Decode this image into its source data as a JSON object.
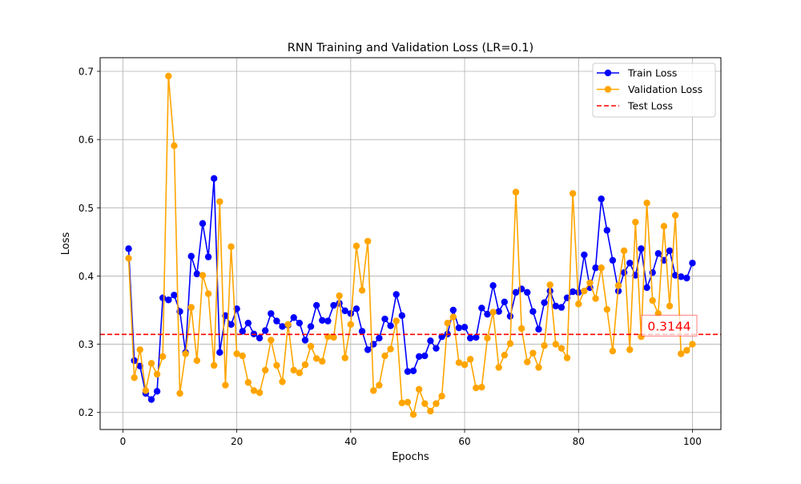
{
  "chart_data": {
    "type": "line",
    "title": "RNN Training and Validation Loss (LR=0.1)",
    "xlabel": "Epochs",
    "ylabel": "Loss",
    "xlim": [
      -4,
      105
    ],
    "ylim": [
      0.175,
      0.72
    ],
    "xticks": [
      0,
      20,
      40,
      60,
      80,
      100
    ],
    "yticks": [
      0.2,
      0.3,
      0.4,
      0.5,
      0.6,
      0.7
    ],
    "grid": true,
    "legend_position": "top-right",
    "x": [
      1,
      2,
      3,
      4,
      5,
      6,
      7,
      8,
      9,
      10,
      11,
      12,
      13,
      14,
      15,
      16,
      17,
      18,
      19,
      20,
      21,
      22,
      23,
      24,
      25,
      26,
      27,
      28,
      29,
      30,
      31,
      32,
      33,
      34,
      35,
      36,
      37,
      38,
      39,
      40,
      41,
      42,
      43,
      44,
      45,
      46,
      47,
      48,
      49,
      50,
      51,
      52,
      53,
      54,
      55,
      56,
      57,
      58,
      59,
      60,
      61,
      62,
      63,
      64,
      65,
      66,
      67,
      68,
      69,
      70,
      71,
      72,
      73,
      74,
      75,
      76,
      77,
      78,
      79,
      80,
      81,
      82,
      83,
      84,
      85,
      86,
      87,
      88,
      89,
      90,
      91,
      92,
      93,
      94,
      95,
      96,
      97,
      98,
      99,
      100
    ],
    "series": [
      {
        "name": "Train Loss",
        "color": "#0000ff",
        "values": [
          0.44,
          0.276,
          0.268,
          0.228,
          0.219,
          0.231,
          0.368,
          0.365,
          0.372,
          0.348,
          0.288,
          0.429,
          0.403,
          0.477,
          0.428,
          0.543,
          0.288,
          0.342,
          0.329,
          0.352,
          0.319,
          0.331,
          0.315,
          0.309,
          0.32,
          0.345,
          0.334,
          0.326,
          0.328,
          0.339,
          0.331,
          0.306,
          0.326,
          0.357,
          0.335,
          0.334,
          0.357,
          0.36,
          0.349,
          0.345,
          0.352,
          0.319,
          0.292,
          0.3,
          0.309,
          0.337,
          0.327,
          0.373,
          0.342,
          0.26,
          0.261,
          0.282,
          0.283,
          0.305,
          0.294,
          0.311,
          0.315,
          0.35,
          0.324,
          0.325,
          0.309,
          0.31,
          0.353,
          0.344,
          0.386,
          0.348,
          0.362,
          0.341,
          0.376,
          0.381,
          0.376,
          0.348,
          0.322,
          0.361,
          0.378,
          0.356,
          0.354,
          0.368,
          0.377,
          0.376,
          0.431,
          0.383,
          0.412,
          0.513,
          0.467,
          0.423,
          0.378,
          0.405,
          0.419,
          0.401,
          0.44,
          0.383,
          0.405,
          0.433,
          0.423,
          0.437,
          0.401,
          0.399,
          0.397,
          0.419
        ]
      },
      {
        "name": "Validation Loss",
        "color": "#ffa500",
        "values": [
          0.426,
          0.251,
          0.292,
          0.232,
          0.272,
          0.256,
          0.282,
          0.693,
          0.591,
          0.228,
          0.286,
          0.354,
          0.276,
          0.401,
          0.374,
          0.269,
          0.509,
          0.24,
          0.443,
          0.286,
          0.283,
          0.244,
          0.232,
          0.229,
          0.262,
          0.306,
          0.269,
          0.245,
          0.329,
          0.262,
          0.258,
          0.27,
          0.297,
          0.279,
          0.275,
          0.311,
          0.31,
          0.371,
          0.28,
          0.329,
          0.444,
          0.379,
          0.451,
          0.232,
          0.24,
          0.283,
          0.293,
          0.334,
          0.214,
          0.215,
          0.197,
          0.234,
          0.213,
          0.202,
          0.213,
          0.224,
          0.331,
          0.34,
          0.273,
          0.27,
          0.278,
          0.236,
          0.237,
          0.309,
          0.347,
          0.266,
          0.284,
          0.301,
          0.523,
          0.323,
          0.274,
          0.287,
          0.266,
          0.298,
          0.387,
          0.3,
          0.294,
          0.28,
          0.521,
          0.359,
          0.378,
          0.39,
          0.367,
          0.412,
          0.351,
          0.29,
          0.386,
          0.437,
          0.292,
          0.479,
          0.311,
          0.507,
          0.364,
          0.345,
          0.473,
          0.356,
          0.489,
          0.286,
          0.291,
          0.3
        ]
      }
    ],
    "reference_line": {
      "name": "Test Loss",
      "value": 0.3144,
      "label": "0.3144",
      "color": "#ff0000",
      "style": "dashed"
    }
  }
}
